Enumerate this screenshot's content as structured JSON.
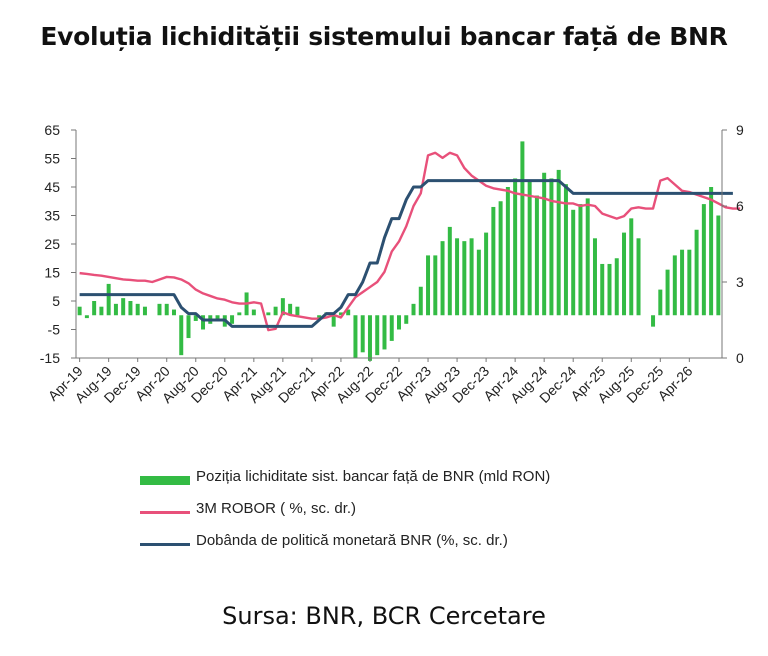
{
  "chart_data": {
    "type": "bar+line",
    "title": "Evoluția lichidității sistemului bancar față de BNR",
    "source": "Sursa: BNR, BCR Cercetare",
    "x_tick_labels": [
      "Apr-19",
      "Aug-19",
      "Dec-19",
      "Apr-20",
      "Aug-20",
      "Dec-20",
      "Apr-21",
      "Aug-21",
      "Dec-21",
      "Apr-22",
      "Aug-22",
      "Dec-22",
      "Apr-23",
      "Aug-23",
      "Dec-23",
      "Apr-24",
      "Aug-24",
      "Dec-24",
      "Apr-25",
      "Aug-25",
      "Dec-25",
      "Apr-26"
    ],
    "y_left": {
      "min": -15,
      "max": 65,
      "ticks": [
        -15,
        -5,
        5,
        15,
        25,
        35,
        45,
        55,
        65
      ]
    },
    "y_right": {
      "min": 0,
      "max": 9,
      "ticks": [
        0,
        3,
        6,
        9
      ]
    },
    "series": [
      {
        "name": "Poziția lichiditate sist. bancar față de BNR (mld RON)",
        "kind": "bar",
        "axis": "left",
        "color": "#33bb44",
        "values": [
          3,
          -1,
          5,
          3,
          11,
          4,
          6,
          5,
          4,
          3,
          0,
          4,
          4,
          2,
          -14,
          -8,
          -2,
          -5,
          -3,
          -2,
          -4,
          -3,
          1,
          8,
          2,
          0,
          1,
          3,
          6,
          4,
          3,
          0,
          0,
          -1,
          1,
          -4,
          1,
          2,
          -15,
          -13,
          -16,
          -14,
          -12,
          -9,
          -5,
          -3,
          4,
          10,
          21,
          21,
          26,
          31,
          27,
          26,
          27,
          23,
          29,
          38,
          40,
          45,
          48,
          61,
          47,
          42,
          50,
          48,
          51,
          46,
          37,
          39,
          41,
          27,
          18,
          18,
          20,
          29,
          34,
          27,
          0,
          -4,
          9,
          16,
          21,
          23,
          23,
          30,
          39,
          45,
          35
        ]
      },
      {
        "name": "3M ROBOR ( %, sc. dr.)",
        "kind": "line",
        "axis": "right",
        "color": "#e8507a",
        "values": [
          3.35,
          3.32,
          3.28,
          3.25,
          3.2,
          3.15,
          3.1,
          3.08,
          3.05,
          3.05,
          3.0,
          3.1,
          3.2,
          3.18,
          3.1,
          2.95,
          2.7,
          2.55,
          2.45,
          2.35,
          2.3,
          2.2,
          2.15,
          2.15,
          2.2,
          2.15,
          1.1,
          1.15,
          1.8,
          1.7,
          1.65,
          1.6,
          1.55,
          1.55,
          1.6,
          1.7,
          1.6,
          2.0,
          2.4,
          2.6,
          2.8,
          3.0,
          3.4,
          4.2,
          4.6,
          5.2,
          6.0,
          6.5,
          8.0,
          8.1,
          7.9,
          8.1,
          8.0,
          7.5,
          7.2,
          7.0,
          6.8,
          6.7,
          6.65,
          6.6,
          6.5,
          6.45,
          6.4,
          6.35,
          6.3,
          6.2,
          6.15,
          6.1,
          6.1,
          6.0,
          6.05,
          6.0,
          5.7,
          5.6,
          5.5,
          5.6,
          5.9,
          5.95,
          5.9,
          5.9,
          7.0,
          7.1,
          6.85,
          6.6,
          6.55,
          6.45,
          6.35,
          6.25,
          6.1,
          5.95,
          5.9,
          5.9
        ]
      },
      {
        "name": "Dobânda de politică monetară BNR (%, sc. dr.)",
        "kind": "line",
        "axis": "right",
        "color": "#2c5071",
        "values": [
          2.5,
          2.5,
          2.5,
          2.5,
          2.5,
          2.5,
          2.5,
          2.5,
          2.5,
          2.5,
          2.5,
          2.5,
          2.5,
          2.5,
          2.0,
          1.75,
          1.75,
          1.5,
          1.5,
          1.5,
          1.5,
          1.25,
          1.25,
          1.25,
          1.25,
          1.25,
          1.25,
          1.25,
          1.25,
          1.25,
          1.25,
          1.25,
          1.25,
          1.5,
          1.75,
          1.75,
          2.0,
          2.5,
          2.5,
          3.0,
          3.75,
          3.75,
          4.75,
          5.5,
          5.5,
          6.25,
          6.75,
          6.75,
          7.0,
          7.0,
          7.0,
          7.0,
          7.0,
          7.0,
          7.0,
          7.0,
          7.0,
          7.0,
          7.0,
          7.0,
          7.0,
          7.0,
          7.0,
          7.0,
          7.0,
          7.0,
          7.0,
          6.75,
          6.5,
          6.5,
          6.5,
          6.5,
          6.5,
          6.5,
          6.5,
          6.5,
          6.5,
          6.5,
          6.5,
          6.5,
          6.5,
          6.5,
          6.5,
          6.5,
          6.5,
          6.5,
          6.5,
          6.5,
          6.5,
          6.5,
          6.5
        ]
      }
    ]
  }
}
